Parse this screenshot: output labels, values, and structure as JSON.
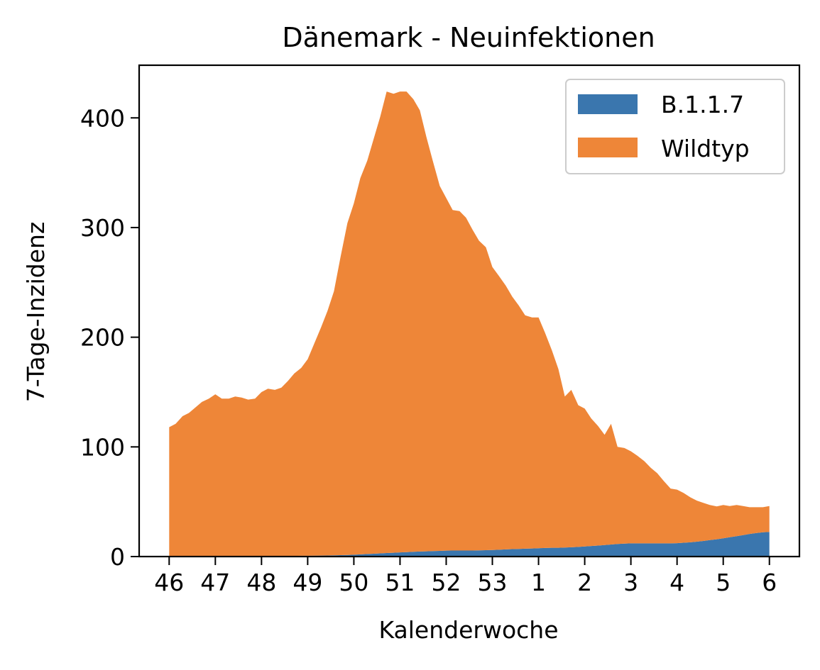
{
  "chart_data": {
    "type": "area",
    "stacked": true,
    "title": "Dänemark - Neuinfektionen",
    "xlabel": "Kalenderwoche",
    "ylabel": "7-Tage-Inzidenz",
    "x_tick_labels": [
      "46",
      "47",
      "48",
      "49",
      "50",
      "51",
      "52",
      "53",
      "1",
      "2",
      "3",
      "4",
      "5",
      "6"
    ],
    "y_ticks": [
      0,
      100,
      200,
      300,
      400
    ],
    "ylim": [
      0,
      448
    ],
    "xlim_weeks": [
      -0.65,
      13.65
    ],
    "legend_position": "top-right",
    "grid": false,
    "colors": {
      "B.1.1.7": "#3a76ae",
      "Wildtyp": "#ee8638"
    },
    "x": [
      0,
      0.14,
      0.29,
      0.43,
      0.57,
      0.71,
      0.86,
      1.0,
      1.14,
      1.29,
      1.43,
      1.57,
      1.71,
      1.86,
      2.0,
      2.14,
      2.29,
      2.43,
      2.57,
      2.71,
      2.86,
      3.0,
      3.14,
      3.29,
      3.43,
      3.57,
      3.71,
      3.86,
      4.0,
      4.14,
      4.29,
      4.43,
      4.57,
      4.71,
      4.86,
      5.0,
      5.14,
      5.29,
      5.43,
      5.57,
      5.71,
      5.86,
      6.0,
      6.14,
      6.29,
      6.43,
      6.57,
      6.71,
      6.86,
      7.0,
      7.14,
      7.29,
      7.43,
      7.57,
      7.71,
      7.86,
      8.0,
      8.14,
      8.29,
      8.43,
      8.57,
      8.71,
      8.86,
      9.0,
      9.14,
      9.29,
      9.43,
      9.57,
      9.71,
      9.86,
      10.0,
      10.14,
      10.29,
      10.43,
      10.57,
      10.71,
      10.86,
      11.0,
      11.14,
      11.29,
      11.43,
      11.57,
      11.71,
      11.86,
      12.0,
      12.14,
      12.29,
      12.43,
      12.57,
      12.71,
      12.86,
      13.0
    ],
    "series": [
      {
        "name": "B.1.1.7",
        "values": [
          0.3,
          0.3,
          0.3,
          0.3,
          0.3,
          0.3,
          0.4,
          0.4,
          0.4,
          0.4,
          0.4,
          0.4,
          0.5,
          0.5,
          0.5,
          0.5,
          0.5,
          0.6,
          0.6,
          0.6,
          0.7,
          0.7,
          0.8,
          0.9,
          1.0,
          1.1,
          1.3,
          1.5,
          1.7,
          2.0,
          2.3,
          2.6,
          2.9,
          3.2,
          3.5,
          3.8,
          4.1,
          4.4,
          4.6,
          4.8,
          5.0,
          5.2,
          5.4,
          5.5,
          5.5,
          5.5,
          5.5,
          5.6,
          5.8,
          6.0,
          6.2,
          6.5,
          6.8,
          7.0,
          7.2,
          7.4,
          7.6,
          7.8,
          8.0,
          8.0,
          8.2,
          8.5,
          8.8,
          9.2,
          9.6,
          10.0,
          10.5,
          11.0,
          11.5,
          11.8,
          12.0,
          12.0,
          12.0,
          12.0,
          12.0,
          12.0,
          12.0,
          12.2,
          12.6,
          13.0,
          13.6,
          14.2,
          15.0,
          15.8,
          16.6,
          17.6,
          18.6,
          19.6,
          20.6,
          21.4,
          22.2,
          22.5
        ]
      },
      {
        "name": "Wildtyp",
        "values": [
          117.7,
          120.7,
          127.7,
          130.7,
          135.7,
          140.7,
          143.6,
          147.6,
          143.6,
          143.6,
          145.6,
          144.6,
          142.6,
          143.5,
          149.5,
          152.5,
          151.5,
          153.4,
          159.4,
          166.4,
          171.3,
          179.3,
          193.2,
          208.1,
          223.0,
          240.9,
          271.7,
          302.5,
          320.3,
          343.0,
          358.7,
          378.4,
          398.1,
          420.8,
          418.5,
          420.2,
          419.9,
          412.6,
          402.3,
          378.0,
          355.8,
          332.8,
          321.6,
          310.5,
          309.5,
          303.5,
          292.5,
          282.4,
          276.2,
          258.0,
          249.8,
          240.5,
          230.2,
          222.0,
          212.8,
          210.6,
          210.4,
          196.2,
          180.0,
          163.0,
          137.8,
          143.5,
          129.2,
          125.8,
          116.4,
          109.0,
          100.5,
          110.0,
          88.5,
          87.2,
          84.0,
          80.0,
          75.0,
          69.0,
          64.0,
          57.0,
          50.0,
          48.8,
          45.4,
          41.0,
          37.4,
          34.8,
          32.0,
          30.0,
          30.4,
          28.4,
          28.4,
          26.4,
          24.4,
          23.6,
          22.8,
          23.5
        ]
      }
    ]
  }
}
